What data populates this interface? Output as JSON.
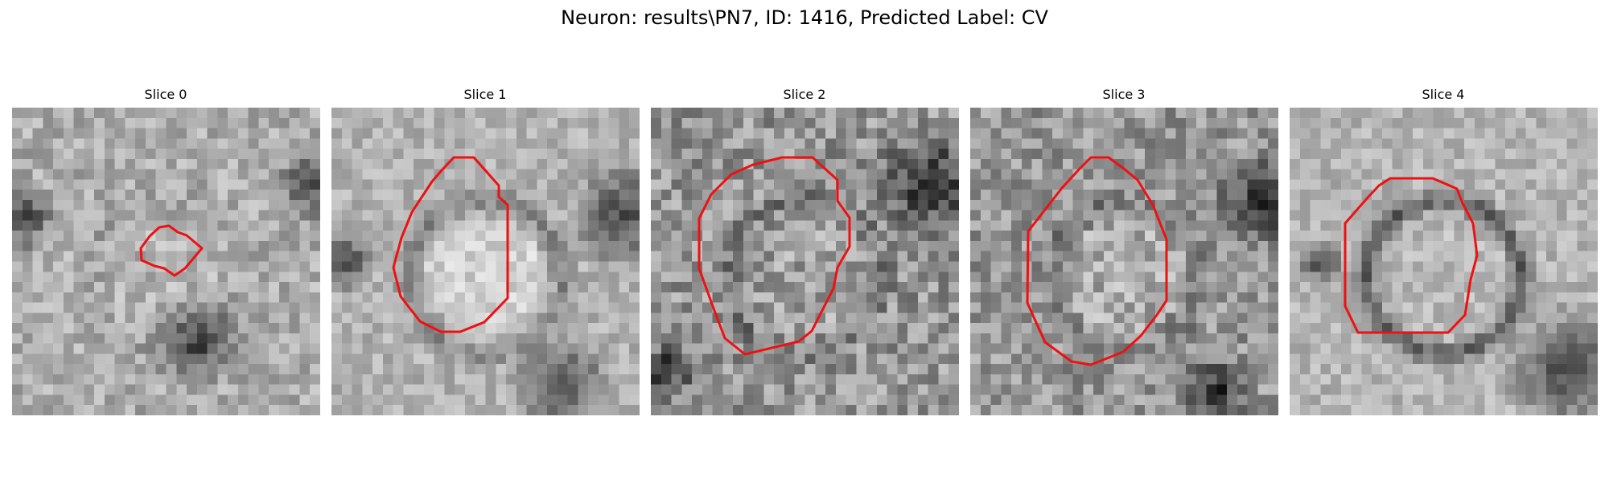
{
  "figure": {
    "title": "Neuron: results\\PN7, ID: 1416, Predicted Label: CV"
  },
  "panels": [
    {
      "title": "Slice 0"
    },
    {
      "title": "Slice 1"
    },
    {
      "title": "Slice 2"
    },
    {
      "title": "Slice 3"
    },
    {
      "title": "Slice 4"
    }
  ],
  "style": {
    "contour_color": "#ee1111",
    "colormap": "grayscale"
  }
}
